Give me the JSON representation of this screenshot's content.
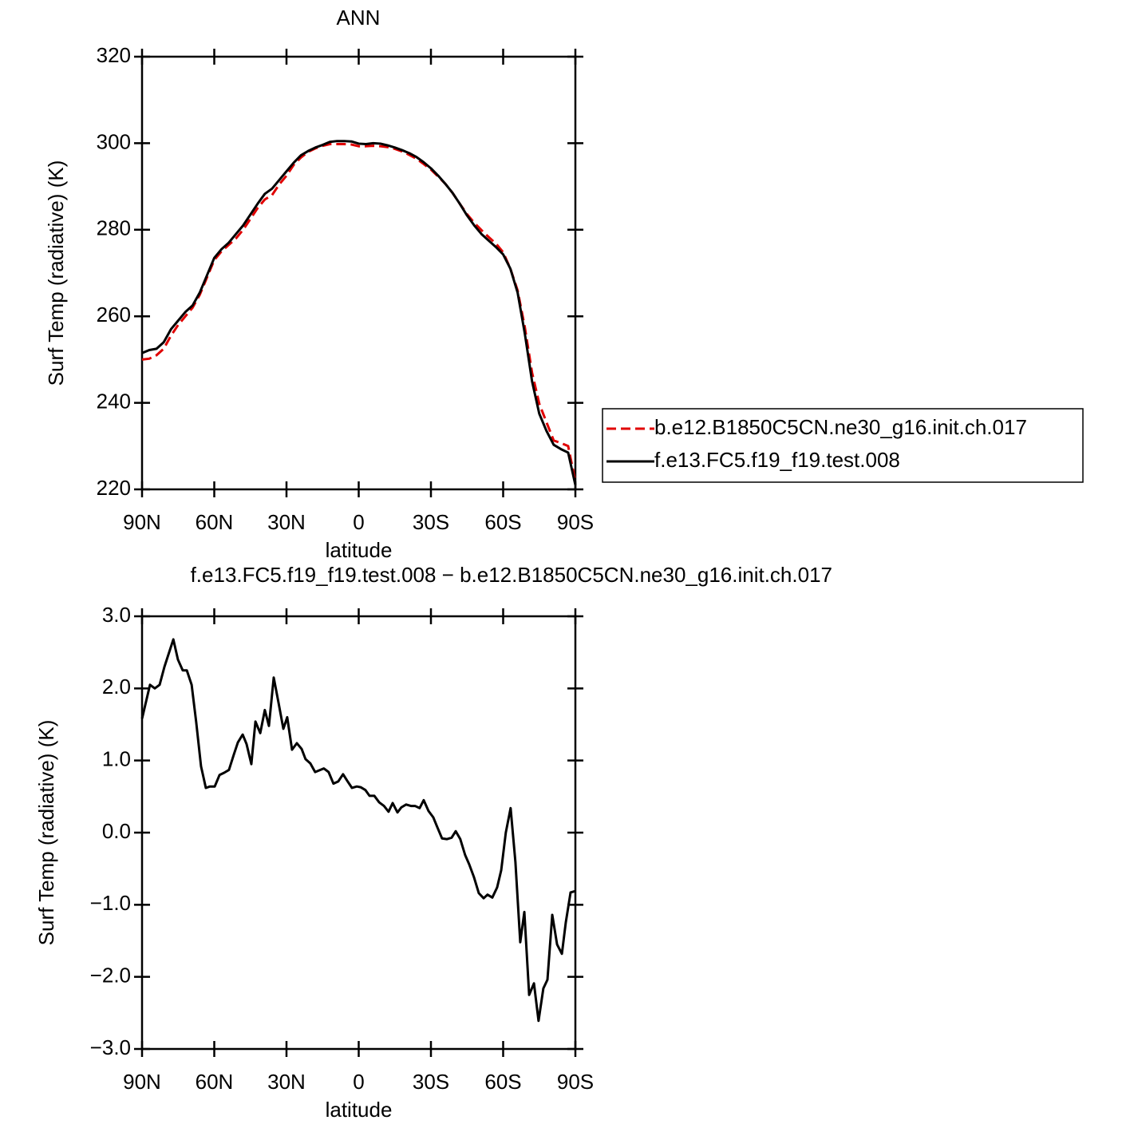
{
  "chart_data": [
    {
      "type": "line",
      "title": "ANN",
      "xlabel": "latitude",
      "ylabel": "Surf Temp (radiative) (K)",
      "x": [
        90,
        87,
        84,
        81,
        78,
        75,
        72,
        69,
        66,
        63,
        60,
        57,
        54,
        51,
        48,
        45,
        42,
        39,
        36,
        33,
        30,
        27,
        24,
        21,
        18,
        15,
        12,
        9,
        6,
        3,
        0,
        -3,
        -6,
        -9,
        -12,
        -15,
        -18,
        -21,
        -24,
        -27,
        -30,
        -33,
        -36,
        -39,
        -42,
        -45,
        -48,
        -51,
        -54,
        -57,
        -60,
        -63,
        -66,
        -69,
        -72,
        -75,
        -78,
        -81,
        -84,
        -87,
        -90
      ],
      "series": [
        {
          "name": "b.e12.B1850C5CN.ne30_g16.init.ch.017",
          "color": "#e00000",
          "style": "dashed",
          "values": [
            250,
            250.2,
            251,
            252.5,
            255.5,
            258,
            260,
            262,
            265,
            269,
            273,
            275,
            276.5,
            278,
            280,
            282.5,
            285,
            287,
            288,
            290.5,
            292.5,
            295,
            296.7,
            298,
            298.8,
            299.4,
            299.8,
            299.8,
            299.8,
            299.7,
            299.3,
            299.3,
            299.4,
            299.3,
            299.1,
            298.7,
            298.1,
            297.3,
            296.4,
            295.2,
            293.9,
            292.3,
            290.6,
            288.5,
            286,
            283.6,
            281.6,
            279.9,
            278.3,
            276.8,
            274.8,
            271,
            266,
            257.5,
            247,
            239.8,
            235.5,
            231.3,
            230.7,
            230,
            221.8
          ]
        },
        {
          "name": "f.e13.FC5.f19_f19.test.008",
          "color": "#000000",
          "style": "solid",
          "values": [
            251.5,
            252.2,
            252.5,
            254,
            257,
            259,
            261,
            262.5,
            265.5,
            269.5,
            273.5,
            275.5,
            277,
            279,
            281,
            283.5,
            286,
            288.3,
            289.5,
            291.5,
            293.5,
            295.5,
            297.2,
            298.2,
            299,
            299.6,
            300.3,
            300.5,
            300.5,
            300.4,
            299.9,
            299.8,
            300,
            299.9,
            299.5,
            299,
            298.4,
            297.7,
            296.8,
            295.6,
            294.2,
            292.5,
            290.6,
            288.5,
            286,
            283.3,
            281,
            279,
            277.5,
            276,
            274.3,
            271,
            265.5,
            256,
            245,
            237.5,
            233.5,
            230.3,
            229.3,
            228.5,
            221
          ]
        }
      ],
      "xlim": [
        90,
        -90
      ],
      "xticks": [
        {
          "value": 90,
          "label": "90N"
        },
        {
          "value": 60,
          "label": "60N"
        },
        {
          "value": 30,
          "label": "30N"
        },
        0,
        {
          "value": -30,
          "label": "30S"
        },
        {
          "value": -60,
          "label": "60S"
        },
        {
          "value": -90,
          "label": "90S"
        }
      ],
      "ylim": [
        220,
        320
      ],
      "yticks": [
        220,
        240,
        260,
        280,
        300,
        320
      ],
      "grid": false,
      "legend": "right"
    },
    {
      "type": "line",
      "title": "f.e13.FC5.f19_f19.test.008 − b.e12.B1850C5CN.ne30_g16.init.ch.017",
      "xlabel": "latitude",
      "ylabel": "Surf Temp (radiative) (K)",
      "x": [
        90,
        86.7,
        84.7,
        82.7,
        80.7,
        77,
        75.1,
        73.1,
        71.4,
        69.4,
        67.5,
        65.5,
        63.5,
        61.8,
        59.8,
        57.8,
        55.9,
        53.9,
        51.9,
        50.2,
        48.2,
        46.6,
        44.6,
        42.9,
        40.9,
        39,
        37.3,
        35.3,
        33.3,
        31.3,
        29.7,
        27.7,
        25.7,
        23.7,
        22.1,
        20.1,
        18.1,
        14.5,
        12.5,
        10.5,
        8.5,
        6.5,
        4.8,
        2.8,
        0.8,
        -0.8,
        -2.8,
        -4.5,
        -6.5,
        -8.5,
        -10.5,
        -12.4,
        -14.1,
        -16.1,
        -17.7,
        -19.7,
        -21.7,
        -23.4,
        -25.3,
        -27,
        -29,
        -31,
        -32.6,
        -34.6,
        -36.6,
        -38.6,
        -40.3,
        -42.2,
        -44.2,
        -45.9,
        -47.9,
        -49.9,
        -51.9,
        -53.5,
        -55.5,
        -57.5,
        -59.2,
        -61.1,
        -63.1,
        -65.1,
        -67.1,
        -68.8,
        -70.8,
        -72.8,
        -74.7,
        -76.7,
        -78.4,
        -80.4,
        -82.4,
        -84.4,
        -86,
        -88,
        -90
      ],
      "series": [
        {
          "color": "#000000",
          "style": "solid",
          "values": [
            1.58,
            2.05,
            2.0,
            2.05,
            2.3,
            2.68,
            2.4,
            2.25,
            2.25,
            2.05,
            1.53,
            0.92,
            0.62,
            0.64,
            0.64,
            0.8,
            0.83,
            0.87,
            1.08,
            1.25,
            1.36,
            1.23,
            0.95,
            1.54,
            1.38,
            1.7,
            1.48,
            2.15,
            1.8,
            1.44,
            1.6,
            1.15,
            1.24,
            1.16,
            1.02,
            0.96,
            0.84,
            0.89,
            0.84,
            0.68,
            0.71,
            0.81,
            0.72,
            0.62,
            0.64,
            0.63,
            0.59,
            0.51,
            0.51,
            0.42,
            0.37,
            0.29,
            0.41,
            0.28,
            0.35,
            0.39,
            0.37,
            0.37,
            0.34,
            0.45,
            0.3,
            0.21,
            0.08,
            -0.08,
            -0.09,
            -0.07,
            0.02,
            -0.09,
            -0.31,
            -0.44,
            -0.62,
            -0.84,
            -0.91,
            -0.86,
            -0.9,
            -0.76,
            -0.52,
            0.0,
            0.34,
            -0.41,
            -1.52,
            -1.1,
            -2.25,
            -2.09,
            -2.61,
            -2.16,
            -2.04,
            -1.14,
            -1.55,
            -1.68,
            -1.25,
            -0.83,
            -0.81
          ]
        }
      ],
      "xlim": [
        90,
        -90
      ],
      "xticks": [
        {
          "value": 90,
          "label": "90N"
        },
        {
          "value": 60,
          "label": "60N"
        },
        {
          "value": 30,
          "label": "30N"
        },
        0,
        {
          "value": -30,
          "label": "30S"
        },
        {
          "value": -60,
          "label": "60S"
        },
        {
          "value": -90,
          "label": "90S"
        }
      ],
      "ylim": [
        -3,
        3
      ],
      "yticks": [
        {
          "value": -3,
          "label": "−3.0"
        },
        {
          "value": -2,
          "label": "−2.0"
        },
        {
          "value": -1,
          "label": "−1.0"
        },
        {
          "value": 0,
          "label": "0.0"
        },
        {
          "value": 1,
          "label": "1.0"
        },
        {
          "value": 2,
          "label": "2.0"
        },
        {
          "value": 3,
          "label": "3.0"
        }
      ],
      "grid": false
    }
  ]
}
